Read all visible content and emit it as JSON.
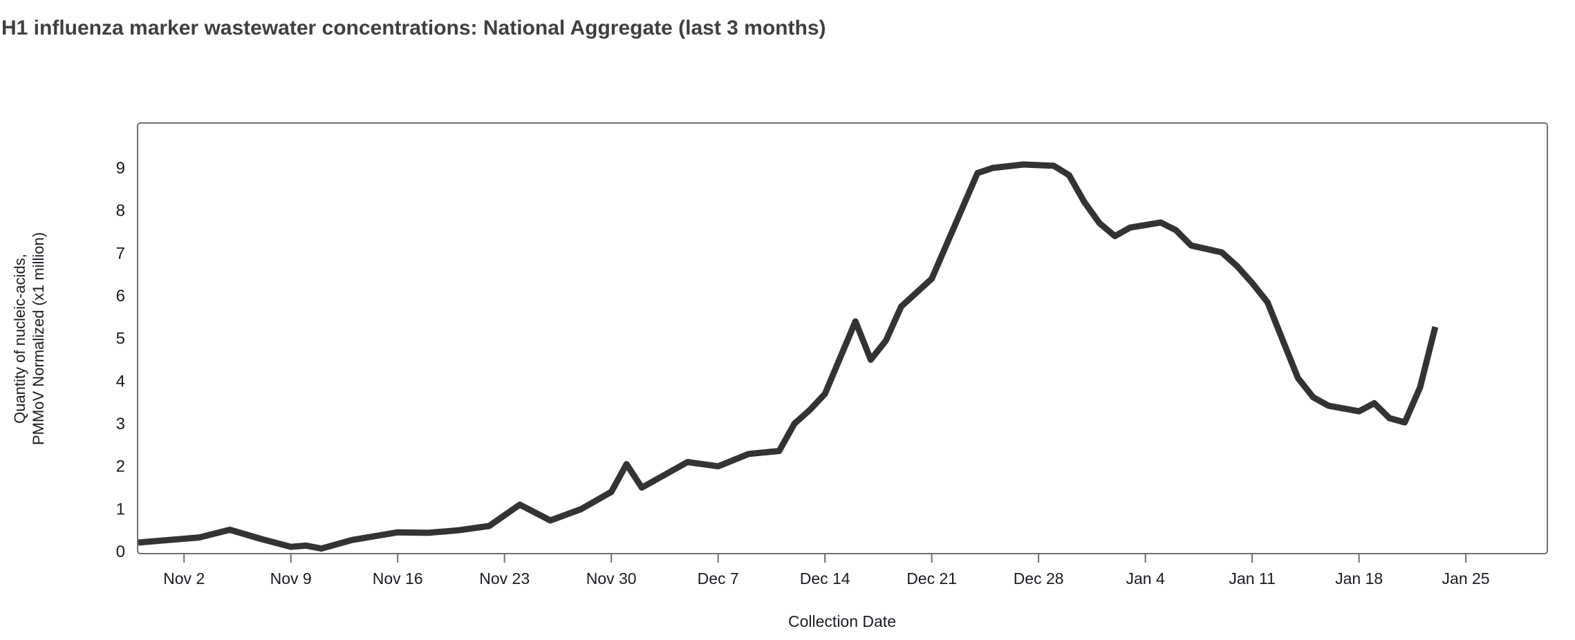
{
  "title": "H1 influenza marker wastewater concentrations: National Aggregate (last 3 months)",
  "chart_data": {
    "type": "line",
    "title": "H1 influenza marker wastewater concentrations: National Aggregate (last 3 months)",
    "xlabel": "Collection Date",
    "ylabel": "Quantity of nucleic-acids,\nPMMoV Normalized (x1 million)",
    "grid": false,
    "legend": "none",
    "line_color": "#333333",
    "axis_color": "#6e6e6e",
    "text_color": "#1a1a22",
    "ylim": [
      0,
      10.05
    ],
    "y_ticks": [
      0,
      1,
      2,
      3,
      4,
      5,
      6,
      7,
      8,
      9
    ],
    "x_tick_labels": [
      "Nov 2",
      "Nov 9",
      "Nov 16",
      "Nov 23",
      "Nov 30",
      "Dec 7",
      "Dec 14",
      "Dec 21",
      "Dec 28",
      "Jan 4",
      "Jan 11",
      "Jan 18",
      "Jan 25"
    ],
    "series": [
      {
        "name": "National Aggregate",
        "points": [
          {
            "date": "Oct 30",
            "value": 0.21
          },
          {
            "date": "Nov 1",
            "value": 0.27
          },
          {
            "date": "Nov 3",
            "value": 0.33
          },
          {
            "date": "Nov 5",
            "value": 0.51
          },
          {
            "date": "Nov 7",
            "value": 0.3
          },
          {
            "date": "Nov 9",
            "value": 0.11
          },
          {
            "date": "Nov 10",
            "value": 0.14
          },
          {
            "date": "Nov 11",
            "value": 0.07
          },
          {
            "date": "Nov 13",
            "value": 0.27
          },
          {
            "date": "Nov 16",
            "value": 0.45
          },
          {
            "date": "Nov 18",
            "value": 0.44
          },
          {
            "date": "Nov 20",
            "value": 0.5
          },
          {
            "date": "Nov 22",
            "value": 0.6
          },
          {
            "date": "Nov 24",
            "value": 1.1
          },
          {
            "date": "Nov 26",
            "value": 0.73
          },
          {
            "date": "Nov 28",
            "value": 0.99
          },
          {
            "date": "Nov 30",
            "value": 1.4
          },
          {
            "date": "Dec 1",
            "value": 2.05
          },
          {
            "date": "Dec 2",
            "value": 1.5
          },
          {
            "date": "Dec 5",
            "value": 2.1
          },
          {
            "date": "Dec 7",
            "value": 2.0
          },
          {
            "date": "Dec 9",
            "value": 2.29
          },
          {
            "date": "Dec 11",
            "value": 2.36
          },
          {
            "date": "Dec 12",
            "value": 3.0
          },
          {
            "date": "Dec 13",
            "value": 3.32
          },
          {
            "date": "Dec 14",
            "value": 3.7
          },
          {
            "date": "Dec 16",
            "value": 5.4
          },
          {
            "date": "Dec 17",
            "value": 4.5
          },
          {
            "date": "Dec 18",
            "value": 4.95
          },
          {
            "date": "Dec 19",
            "value": 5.75
          },
          {
            "date": "Dec 21",
            "value": 6.4
          },
          {
            "date": "Dec 24",
            "value": 8.88
          },
          {
            "date": "Dec 25",
            "value": 9.0
          },
          {
            "date": "Dec 27",
            "value": 9.08
          },
          {
            "date": "Dec 29",
            "value": 9.05
          },
          {
            "date": "Dec 30",
            "value": 8.83
          },
          {
            "date": "Dec 31",
            "value": 8.2
          },
          {
            "date": "Jan 1",
            "value": 7.7
          },
          {
            "date": "Jan 2",
            "value": 7.4
          },
          {
            "date": "Jan 3",
            "value": 7.6
          },
          {
            "date": "Jan 5",
            "value": 7.72
          },
          {
            "date": "Jan 6",
            "value": 7.54
          },
          {
            "date": "Jan 7",
            "value": 7.18
          },
          {
            "date": "Jan 9",
            "value": 7.02
          },
          {
            "date": "Jan 10",
            "value": 6.7
          },
          {
            "date": "Jan 11",
            "value": 6.3
          },
          {
            "date": "Jan 12",
            "value": 5.85
          },
          {
            "date": "Jan 14",
            "value": 4.07
          },
          {
            "date": "Jan 15",
            "value": 3.62
          },
          {
            "date": "Jan 16",
            "value": 3.42
          },
          {
            "date": "Jan 18",
            "value": 3.29
          },
          {
            "date": "Jan 19",
            "value": 3.48
          },
          {
            "date": "Jan 20",
            "value": 3.13
          },
          {
            "date": "Jan 21",
            "value": 3.03
          },
          {
            "date": "Jan 22",
            "value": 3.85
          },
          {
            "date": "Jan 23",
            "value": 5.27
          }
        ]
      }
    ]
  }
}
